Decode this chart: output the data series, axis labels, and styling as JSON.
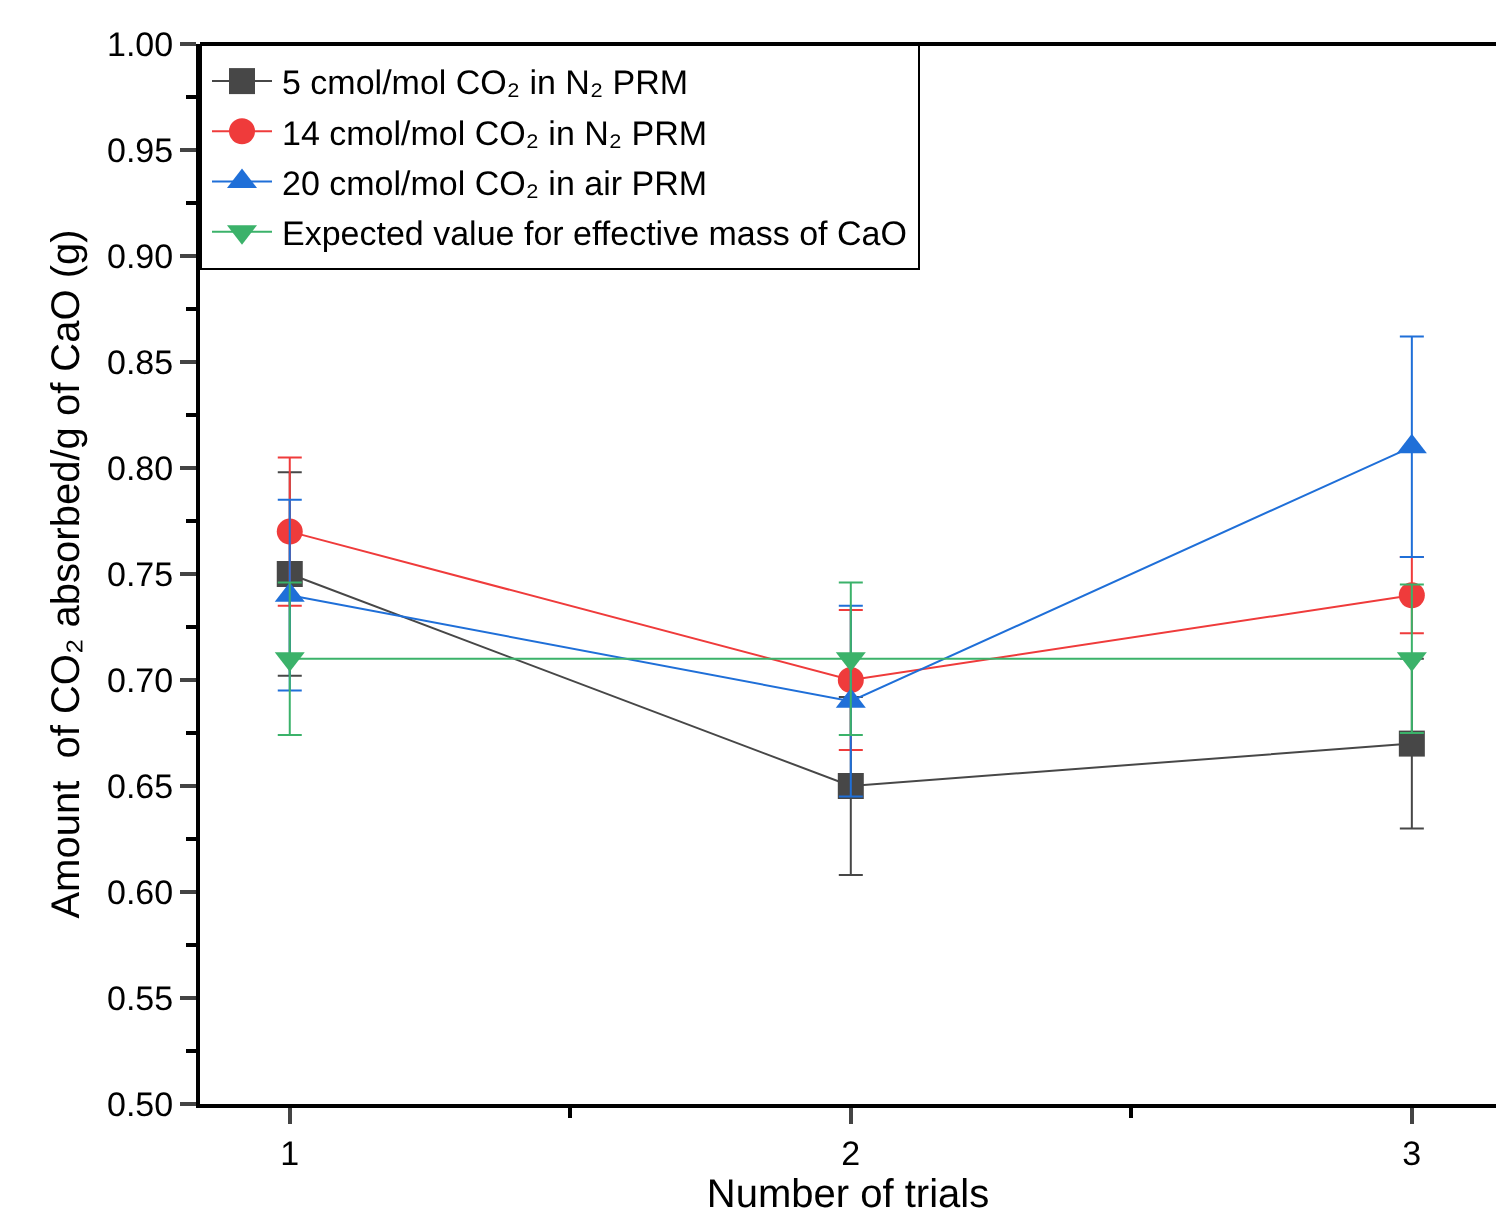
{
  "chart_data": {
    "type": "line",
    "xlabel": "Number of trials",
    "ylabel": "Amount  of CO₂ absorbed/g of CaO (g)",
    "x": [
      1,
      2,
      3
    ],
    "xlim": [
      0.84,
      3.15
    ],
    "xticks": [
      1,
      2,
      3
    ],
    "ylim": [
      0.5,
      1.0
    ],
    "yticks": [
      {
        "value": 0.5,
        "label": "0.50"
      },
      {
        "value": 0.55,
        "label": "0.55"
      },
      {
        "value": 0.6,
        "label": "0.60"
      },
      {
        "value": 0.65,
        "label": "0.65"
      },
      {
        "value": 0.7,
        "label": "0.70"
      },
      {
        "value": 0.75,
        "label": "0.75"
      },
      {
        "value": 0.8,
        "label": "0.80"
      },
      {
        "value": 0.85,
        "label": "0.85"
      },
      {
        "value": 0.9,
        "label": "0.90"
      },
      {
        "value": 0.95,
        "label": "0.95"
      },
      {
        "value": 1.0,
        "label": "1.00"
      }
    ],
    "grid": false,
    "legend": "top left",
    "line_style": "solid",
    "series": [
      {
        "name": "5 cmol/mol CO₂ in N₂ PRM",
        "color": "#474747",
        "marker": "square",
        "values": [
          0.75,
          0.65,
          0.67
        ],
        "errors": [
          0.048,
          0.042,
          0.04
        ]
      },
      {
        "name": "14 cmol/mol CO₂ in N₂ PRM",
        "color": "#ef3b3b",
        "marker": "circle",
        "values": [
          0.77,
          0.7,
          0.74
        ],
        "errors": [
          0.035,
          0.033,
          0.018
        ]
      },
      {
        "name": "20 cmol/mol CO₂ in air PRM",
        "color": "#1f6fd8",
        "marker": "triangle",
        "values": [
          0.74,
          0.69,
          0.81
        ],
        "errors": [
          0.045,
          0.045,
          0.052
        ]
      },
      {
        "name": "Expected value for effective mass of CaO",
        "color": "#3bb26a",
        "marker": "triangle-down",
        "values": [
          0.71,
          0.71,
          0.71
        ],
        "errors": [
          0.036,
          0.036,
          0.035
        ]
      }
    ]
  }
}
